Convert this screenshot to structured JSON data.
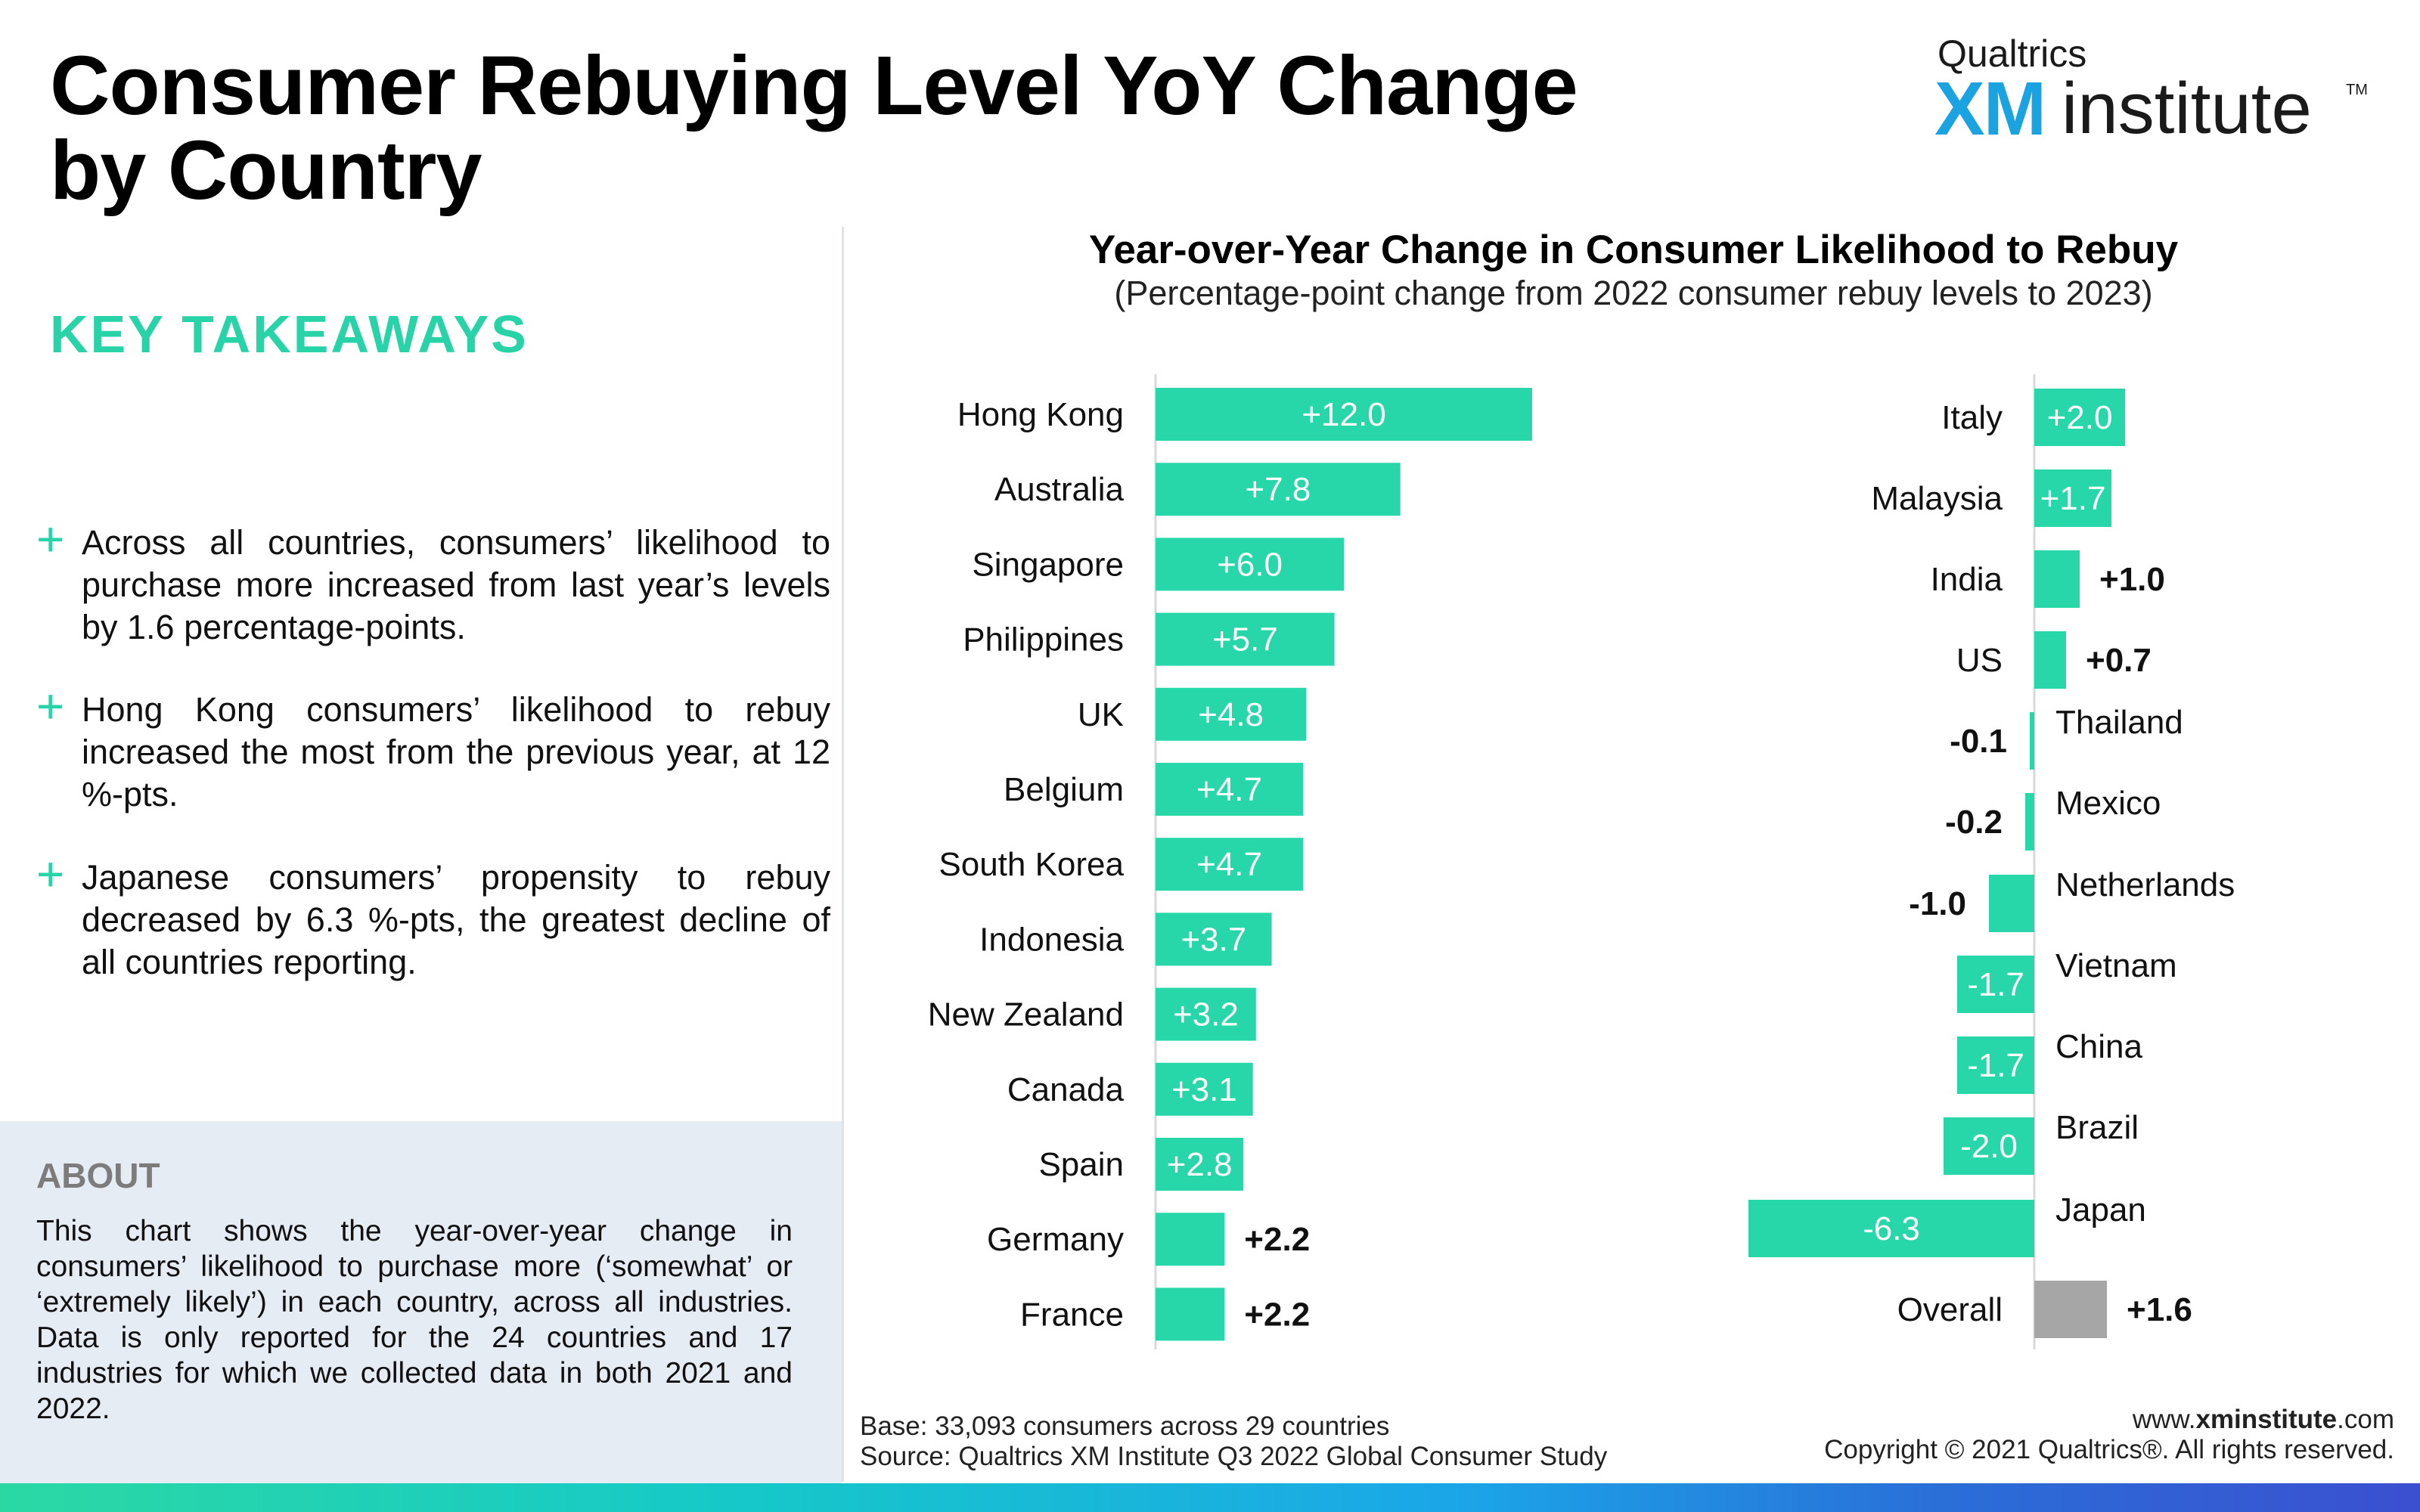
{
  "page": {
    "title": "Consumer Rebuying Level YoY Change by Country"
  },
  "logo": {
    "top": "Qualtrics",
    "xm": "XM",
    "institute": "institute",
    "tm": "TM"
  },
  "takeaways": {
    "heading": "KEY TAKEAWAYS",
    "items": [
      "Across all countries, consumers’ likelihood to purchase more increased from last year’s levels by 1.6 percentage-points.",
      "Hong Kong consumers’ likelihood to rebuy increased the most from the previous year, at 12 %-pts.",
      "Japanese consumers’ propensity to rebuy decreased by 6.3 %-pts, the greatest decline of all countries reporting."
    ]
  },
  "about": {
    "heading": "ABOUT",
    "text": "This chart shows the year-over-year change in consumers’ likelihood to purchase more (‘somewhat’ or ‘extremely likely’) in each country, across all industries. Data is only reported for the 24 countries and 17 industries for which we collected data in both 2021 and 2022."
  },
  "chart_data": {
    "type": "bar",
    "orientation": "horizontal",
    "title": "Year-over-Year Change in Consumer Likelihood to Rebuy",
    "subtitle": "(Percentage-point change from 2022 consumer rebuy levels to 2023)",
    "colors": {
      "bar": "#27d7aa",
      "overall": "#a6a6a6",
      "axis": "#d9d9d9"
    },
    "panels": [
      {
        "categories": [
          "Hong Kong",
          "Australia",
          "Singapore",
          "Philippines",
          "UK",
          "Belgium",
          "South Korea",
          "Indonesia",
          "New Zealand",
          "Canada",
          "Spain",
          "Germany",
          "France"
        ],
        "values": [
          12.0,
          7.8,
          6.0,
          5.7,
          4.8,
          4.7,
          4.7,
          3.7,
          3.2,
          3.1,
          2.8,
          2.2,
          2.2
        ],
        "labels": [
          "+12.0",
          "+7.8",
          "+6.0",
          "+5.7",
          "+4.8",
          "+4.7",
          "+4.7",
          "+3.7",
          "+3.2",
          "+3.1",
          "+2.8",
          "+2.2",
          "+2.2"
        ]
      },
      {
        "categories": [
          "Italy",
          "Malaysia",
          "India",
          "US",
          "Thailand",
          "Mexico",
          "Netherlands",
          "Vietnam",
          "China",
          "Brazil",
          "Japan",
          "Overall"
        ],
        "values": [
          2.0,
          1.7,
          1.0,
          0.7,
          -0.1,
          -0.2,
          -1.0,
          -1.7,
          -1.7,
          -2.0,
          -6.3,
          1.6
        ],
        "labels": [
          "+2.0",
          "+1.7",
          "+1.0",
          "+0.7",
          "-0.1",
          "-0.2",
          "-1.0",
          "-1.7",
          "-1.7",
          "-2.0",
          "-6.3",
          "+1.6"
        ],
        "highlight": "Overall"
      }
    ]
  },
  "footer": {
    "base": "Base: 33,093 consumers across 29 countries",
    "source": "Source: Qualtrics XM Institute Q3 2022 Global Consumer Study",
    "site_prefix": "www.",
    "site_bold": "xminstitute",
    "site_suffix": ".com",
    "copyright": "Copyright © 2021 Qualtrics®. All rights reserved."
  }
}
